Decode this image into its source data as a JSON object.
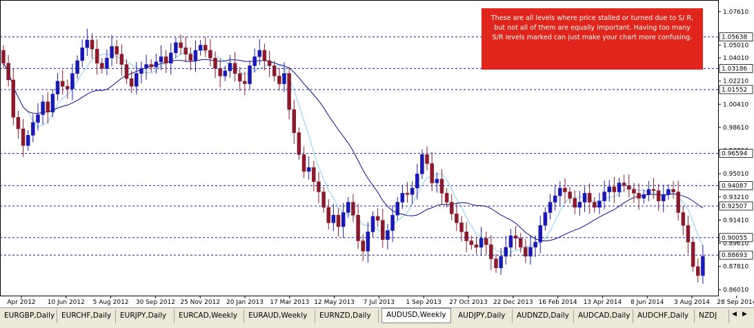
{
  "chart_data": {
    "type": "candlestick",
    "symbol": "AUDUSD",
    "timeframe": "Weekly",
    "ylim": [
      0.856,
      1.084
    ],
    "price_ticks": [
      "1.07610",
      "1.05010",
      "1.04010",
      "1.02210",
      "1.00410",
      "0.98610",
      "0.96810",
      "0.95010",
      "0.93210",
      "0.91410",
      "0.89610",
      "0.87810",
      "0.86010"
    ],
    "sr_levels": [
      {
        "label": "1.05638",
        "value": 1.05638
      },
      {
        "label": "1.03186",
        "value": 1.03186
      },
      {
        "label": "1.01552",
        "value": 1.01552
      },
      {
        "label": "0.96594",
        "value": 0.96594
      },
      {
        "label": "0.94087",
        "value": 0.94087
      },
      {
        "label": "0.92507",
        "value": 0.92507
      },
      {
        "label": "0.90055",
        "value": 0.90055
      },
      {
        "label": "0.88693",
        "value": 0.88693
      }
    ],
    "time_labels": [
      "Apr 2012",
      "10 Jun 2012",
      "5 Aug 2012",
      "30 Sep 2012",
      "25 Nov 2012",
      "20 Jan 2013",
      "17 Mar 2013",
      "12 May 2013",
      "7 Jul 2013",
      "1 Sep 2013",
      "27 Oct 2013",
      "22 Dec 2013",
      "16 Feb 2014",
      "13 Apr 2014",
      "8 Jun 2014",
      "3 Aug 2014",
      "28 Sep 2014"
    ],
    "closes": [
      1.036,
      1.023,
      0.994,
      0.985,
      0.972,
      0.98,
      0.99,
      0.996,
      1.006,
      0.998,
      1.012,
      1.022,
      1.018,
      1.016,
      1.028,
      1.038,
      1.048,
      1.054,
      1.047,
      1.036,
      1.032,
      1.04,
      1.049,
      1.043,
      1.035,
      1.024,
      1.018,
      1.028,
      1.032,
      1.035,
      1.033,
      1.037,
      1.041,
      1.036,
      1.044,
      1.052,
      1.048,
      1.043,
      1.038,
      1.046,
      1.05,
      1.046,
      1.04,
      1.032,
      1.026,
      1.03,
      1.036,
      1.028,
      1.022,
      1.02,
      1.034,
      1.041,
      1.046,
      1.038,
      1.034,
      1.026,
      1.02,
      1.028,
      1.0,
      0.982,
      0.965,
      0.952,
      0.955,
      0.944,
      0.936,
      0.924,
      0.912,
      0.918,
      0.909,
      0.92,
      0.928,
      0.918,
      0.898,
      0.89,
      0.905,
      0.917,
      0.914,
      0.899,
      0.906,
      0.918,
      0.928,
      0.935,
      0.934,
      0.939,
      0.95,
      0.965,
      0.958,
      0.943,
      0.946,
      0.935,
      0.928,
      0.919,
      0.912,
      0.905,
      0.898,
      0.895,
      0.893,
      0.9,
      0.895,
      0.884,
      0.877,
      0.886,
      0.893,
      0.902,
      0.9,
      0.893,
      0.886,
      0.893,
      0.897,
      0.91,
      0.92,
      0.928,
      0.933,
      0.939,
      0.936,
      0.931,
      0.924,
      0.928,
      0.935,
      0.928,
      0.924,
      0.929,
      0.936,
      0.94,
      0.936,
      0.943,
      0.941,
      0.938,
      0.935,
      0.931,
      0.934,
      0.938,
      0.937,
      0.929,
      0.934,
      0.938,
      0.936,
      0.92,
      0.91,
      0.897,
      0.878,
      0.871,
      0.886
    ],
    "annotation": "These are all levels where price stalled or turned due to S/ R, but not all of them are equally important.  Having too many S/R levels marked can just make your chart more confusing.",
    "colors": {
      "bull": "#1a1ab3",
      "bear": "#8b1a2b",
      "sr_line": "#1a1aa6",
      "ma_slow": "#0b0b8f",
      "ma_fast": "#87cefa",
      "annotation_bg": "#e0261c"
    }
  },
  "tabs": {
    "items": [
      "EURGBP,Daily",
      "EURCHF,Daily",
      "EURJPY,Daily",
      "EURCAD,Weekly",
      "EURAUD,Weekly",
      "EURNZD,Daily",
      "AUDUSD,Weekly",
      "AUDJPY,Daily",
      "AUDNZD,Daily",
      "AUDCAD,Daily",
      "AUDCHF,Daily",
      "NZDJ"
    ],
    "active": "AUDUSD,Weekly",
    "arrow_left": "◀",
    "arrow_right": "▶"
  }
}
